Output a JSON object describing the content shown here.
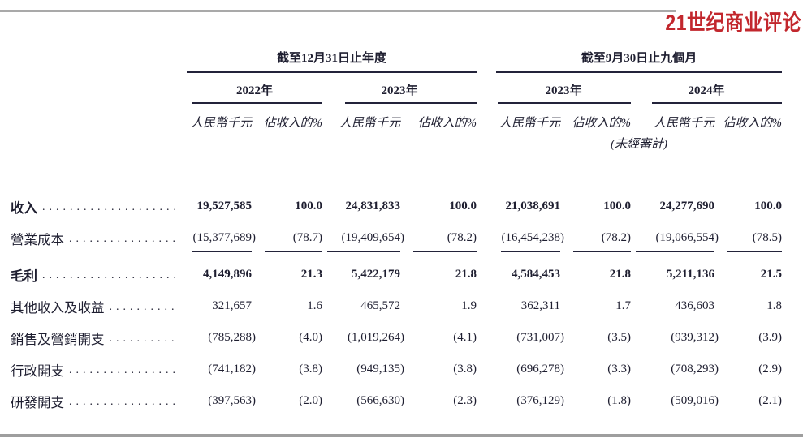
{
  "masthead": {
    "logo_text": "21世纪商业评论",
    "logo_color": "#c2272d"
  },
  "table": {
    "groups": [
      {
        "title": "截至12月31日止年度",
        "years": [
          {
            "label": "2022年"
          },
          {
            "label": "2023年"
          }
        ]
      },
      {
        "title": "截至9月30日止九個月",
        "years": [
          {
            "label": "2023年"
          },
          {
            "label": "2024年"
          }
        ]
      }
    ],
    "col_headers": {
      "amount": "人民幣千元",
      "percent": "佔收入的%"
    },
    "unaudited_note": "(未經審計)",
    "rows": [
      {
        "label": "收入",
        "bold": true,
        "underline": false,
        "values": [
          "19,527,585",
          "100.0",
          "24,831,833",
          "100.0",
          "21,038,691",
          "100.0",
          "24,277,690",
          "100.0"
        ]
      },
      {
        "label": "營業成本",
        "bold": false,
        "underline": true,
        "values": [
          "(15,377,689)",
          "(78.7)",
          "(19,409,654)",
          "(78.2)",
          "(16,454,238)",
          "(78.2)",
          "(19,066,554)",
          "(78.5)"
        ]
      },
      {
        "label": "毛利",
        "bold": true,
        "underline": false,
        "values": [
          "4,149,896",
          "21.3",
          "5,422,179",
          "21.8",
          "4,584,453",
          "21.8",
          "5,211,136",
          "21.5"
        ]
      },
      {
        "label": "其他收入及收益",
        "bold": false,
        "underline": false,
        "values": [
          "321,657",
          "1.6",
          "465,572",
          "1.9",
          "362,311",
          "1.7",
          "436,603",
          "1.8"
        ]
      },
      {
        "label": "銷售及營銷開支",
        "bold": false,
        "underline": false,
        "values": [
          "(785,288)",
          "(4.0)",
          "(1,019,264)",
          "(4.1)",
          "(731,007)",
          "(3.5)",
          "(939,312)",
          "(3.9)"
        ]
      },
      {
        "label": "行政開支",
        "bold": false,
        "underline": false,
        "values": [
          "(741,182)",
          "(3.8)",
          "(949,135)",
          "(3.8)",
          "(696,278)",
          "(3.3)",
          "(708,293)",
          "(2.9)"
        ]
      },
      {
        "label": "研發開支",
        "bold": false,
        "underline": false,
        "values": [
          "(397,563)",
          "(2.0)",
          "(566,630)",
          "(2.3)",
          "(376,129)",
          "(1.8)",
          "(509,016)",
          "(2.1)"
        ]
      }
    ]
  }
}
